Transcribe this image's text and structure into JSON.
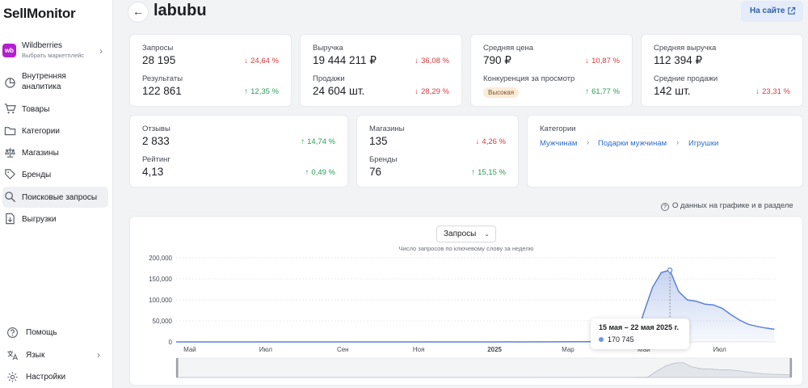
{
  "app": {
    "logo": "SellMonitor"
  },
  "marketplace": {
    "badge": "wb",
    "name": "Wildberries",
    "subtitle": "Выбрать маркетплейс"
  },
  "sidebar": {
    "items": [
      {
        "label": "Внутренняя аналитика",
        "icon": "analytics-icon",
        "active": false
      },
      {
        "label": "Товары",
        "icon": "cart-icon",
        "active": false
      },
      {
        "label": "Категории",
        "icon": "folder-icon",
        "active": false
      },
      {
        "label": "Магазины",
        "icon": "scales-icon",
        "active": false
      },
      {
        "label": "Бренды",
        "icon": "tag-icon",
        "active": false
      },
      {
        "label": "Поисковые запросы",
        "icon": "search-icon",
        "active": true
      },
      {
        "label": "Выгрузки",
        "icon": "export-icon",
        "active": false
      }
    ],
    "bottom": [
      {
        "label": "Помощь",
        "icon": "help-icon"
      },
      {
        "label": "Язык",
        "icon": "language-icon"
      },
      {
        "label": "Настройки",
        "icon": "gear-icon"
      }
    ]
  },
  "header": {
    "title": "labubu",
    "site_button": "На сайте"
  },
  "metrics": {
    "queries": {
      "label": "Запросы",
      "value": "28 195",
      "delta": "24,64 %",
      "trend": "down"
    },
    "results": {
      "label": "Результаты",
      "value": "122 861",
      "delta": "12,35 %",
      "trend": "up"
    },
    "revenue": {
      "label": "Выручка",
      "value": "19 444 211 ₽",
      "delta": "36,08 %",
      "trend": "down"
    },
    "sales": {
      "label": "Продажи",
      "value": "24 604 шт.",
      "delta": "28,29 %",
      "trend": "down"
    },
    "avg_price": {
      "label": "Средняя цена",
      "value": "790 ₽",
      "delta": "10,87 %",
      "trend": "down"
    },
    "competition": {
      "label": "Конкуренция за просмотр",
      "badge": "Высокая",
      "delta": "61,77 %",
      "trend": "up"
    },
    "avg_revenue": {
      "label": "Средняя выручка",
      "value": "112 394 ₽"
    },
    "avg_sales": {
      "label": "Средние продажи",
      "value": "142 шт.",
      "delta": "23,31 %",
      "trend": "down"
    },
    "reviews": {
      "label": "Отзывы",
      "value": "2 833",
      "delta": "14,74 %",
      "trend": "up"
    },
    "rating": {
      "label": "Рейтинг",
      "value": "4,13",
      "delta": "0,49 %",
      "trend": "up"
    },
    "shops": {
      "label": "Магазины",
      "value": "135",
      "delta": "4,26 %",
      "trend": "down"
    },
    "brands": {
      "label": "Бренды",
      "value": "76",
      "delta": "15,15 %",
      "trend": "up"
    }
  },
  "categories": {
    "label": "Категории",
    "path": [
      "Мужчинам",
      "Подарки мужчинам",
      "Игрушки"
    ]
  },
  "chart_section": {
    "info_text": "О данных на графике и в разделе",
    "select_value": "Запросы",
    "subtitle": "Число запросов по ключевому слову за неделю",
    "tooltip": {
      "date": "15 мая – 22 мая 2025 г.",
      "value": "170 745"
    }
  },
  "colors": {
    "accent": "#2f6dc7",
    "down": "#d13b3b",
    "up": "#2a9a56",
    "line": "#5b82d6"
  },
  "chart_data": {
    "type": "area",
    "title": "",
    "subtitle": "Число запросов по ключевому слову за неделю",
    "xlabel": "",
    "ylabel": "",
    "ylim": [
      0,
      200000
    ],
    "yticks": [
      "200,000",
      "150,000",
      "100,000",
      "50,000",
      "0"
    ],
    "ytick_values": [
      200000,
      150000,
      100000,
      50000,
      0
    ],
    "xticks": [
      "Май",
      "Июл",
      "Сен",
      "Ноя",
      "2025",
      "Мар",
      "Май",
      "Июл"
    ],
    "xtick_dates": [
      "2024-05",
      "2024-07",
      "2024-09",
      "2024-11",
      "2025-01",
      "2025-03",
      "2025-05",
      "2025-07"
    ],
    "xlim": [
      "2024-04-20",
      "2025-08-15"
    ],
    "grid": true,
    "series": [
      {
        "values": [
          [
            "2024-04-20",
            0
          ],
          [
            "2024-07-01",
            0
          ],
          [
            "2024-10-01",
            0
          ],
          [
            "2025-01-01",
            0
          ],
          [
            "2025-03-15",
            500
          ],
          [
            "2025-04-10",
            1000
          ],
          [
            "2025-04-24",
            3000
          ],
          [
            "2025-05-01",
            70000
          ],
          [
            "2025-05-08",
            130000
          ],
          [
            "2025-05-15",
            165000
          ],
          [
            "2025-05-22",
            170745
          ],
          [
            "2025-05-29",
            120000
          ],
          [
            "2025-06-05",
            100000
          ],
          [
            "2025-06-12",
            97000
          ],
          [
            "2025-06-19",
            90000
          ],
          [
            "2025-06-26",
            88000
          ],
          [
            "2025-07-03",
            80000
          ],
          [
            "2025-07-10",
            65000
          ],
          [
            "2025-07-17",
            52000
          ],
          [
            "2025-07-24",
            42000
          ],
          [
            "2025-07-31",
            37000
          ],
          [
            "2025-08-07",
            33000
          ],
          [
            "2025-08-14",
            30000
          ]
        ]
      }
    ],
    "highlight": {
      "x": "2025-05-22",
      "y": 170745
    }
  }
}
